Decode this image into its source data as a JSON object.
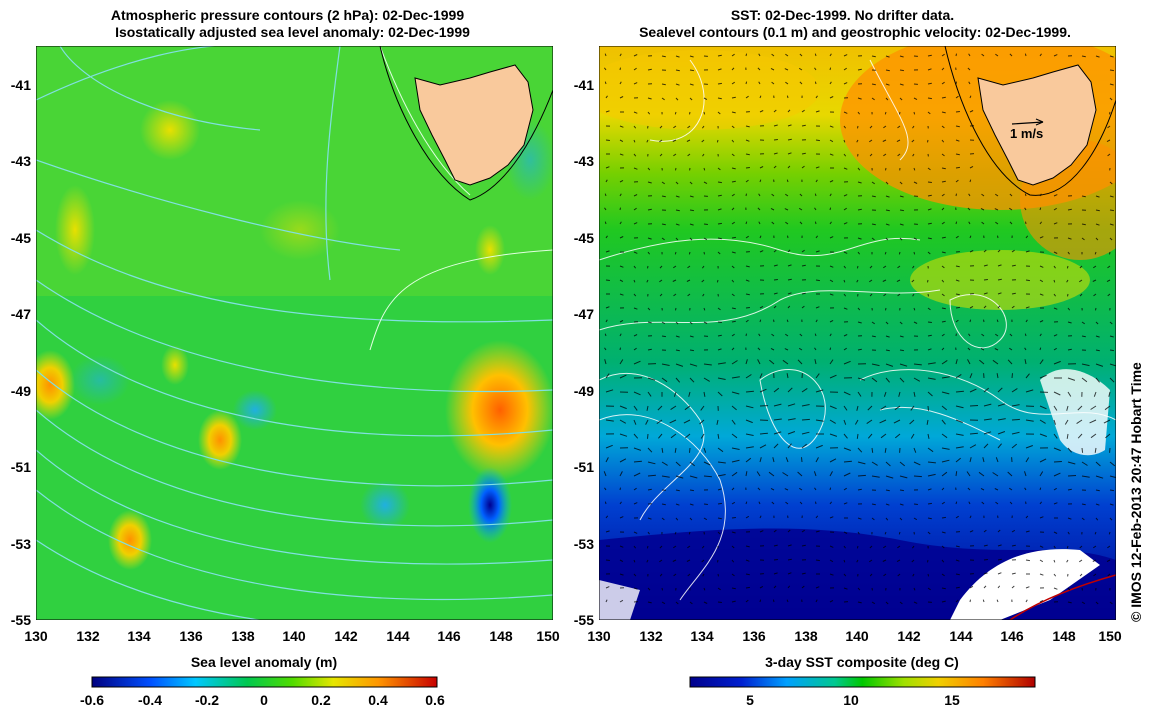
{
  "left_panel": {
    "title_line1": "Atmospheric pressure contours (2 hPa): 02-Dec-1999",
    "title_line2": "Isostatically adjusted sea level anomaly: 02-Dec-1999",
    "colorbar_label": "Sea level anomaly (m)",
    "colorbar_ticks": [
      "-0.6",
      "-0.4",
      "-0.2",
      "0",
      "0.2",
      "0.4",
      "0.6"
    ]
  },
  "right_panel": {
    "title_line1": "SST: 02-Dec-1999. No drifter data.",
    "title_line2": "Sealevel contours (0.1 m) and geostrophic velocity: 02-Dec-1999.",
    "colorbar_label": "3-day SST composite (deg C)",
    "colorbar_ticks": [
      "5",
      "10",
      "15"
    ],
    "scale_arrow_label": "1 m/s"
  },
  "axes": {
    "lon_ticks": [
      "130",
      "132",
      "134",
      "136",
      "138",
      "140",
      "142",
      "144",
      "146",
      "148",
      "150"
    ],
    "lat_ticks": [
      "-41",
      "-43",
      "-45",
      "-47",
      "-49",
      "-51",
      "-53",
      "-55"
    ]
  },
  "credit": "© IMOS 12-Feb-2013 20:47 Hobart Time",
  "colors": {
    "land": "#f9c99c",
    "sla_low": "#000080",
    "sla_mid": "#00c800",
    "sla_high": "#c80000",
    "sst_low": "#00008c",
    "sst_high": "#c02000",
    "pressure_contours": "#80e0e0"
  }
}
